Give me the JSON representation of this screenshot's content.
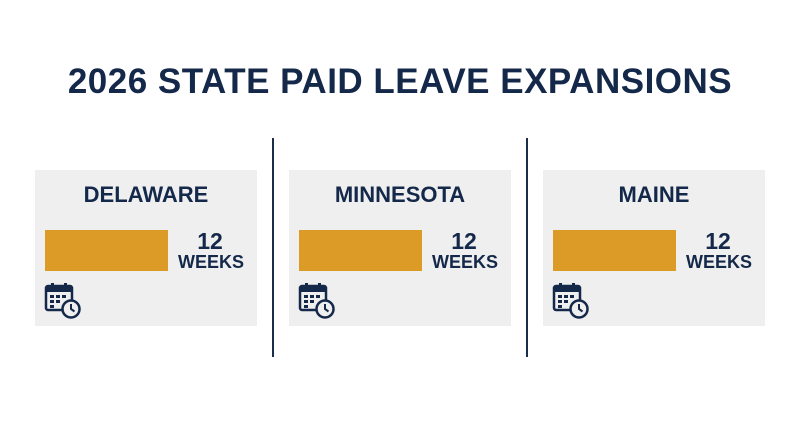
{
  "header": {
    "title": "2026 STATE PAID LEAVE EXPANSIONS"
  },
  "states": [
    {
      "name": "DELAWARE",
      "value": 12,
      "unit": "WEEKS"
    },
    {
      "name": "MINNESOTA",
      "value": 12,
      "unit": "WEEKS"
    },
    {
      "name": "MAINE",
      "value": 12,
      "unit": "WEEKS"
    }
  ]
}
